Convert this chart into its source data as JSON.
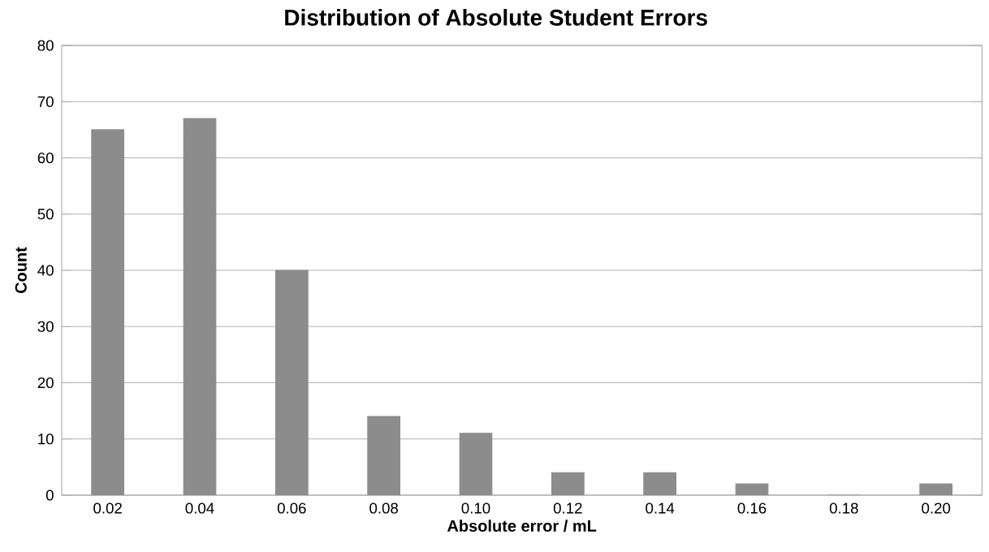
{
  "chart_data": {
    "type": "bar",
    "title": "Distribution of Absolute Student Errors",
    "xlabel": "Absolute error / mL",
    "ylabel": "Count",
    "categories": [
      "0.02",
      "0.04",
      "0.06",
      "0.08",
      "0.10",
      "0.12",
      "0.14",
      "0.16",
      "0.18",
      "0.20"
    ],
    "values": [
      65,
      67,
      40,
      14,
      11,
      4,
      4,
      2,
      0,
      2
    ],
    "color": "#8c8c8c",
    "ylim": [
      0,
      80
    ],
    "yticks": [
      0,
      10,
      20,
      30,
      40,
      50,
      60,
      70,
      80
    ],
    "grid": "y"
  }
}
